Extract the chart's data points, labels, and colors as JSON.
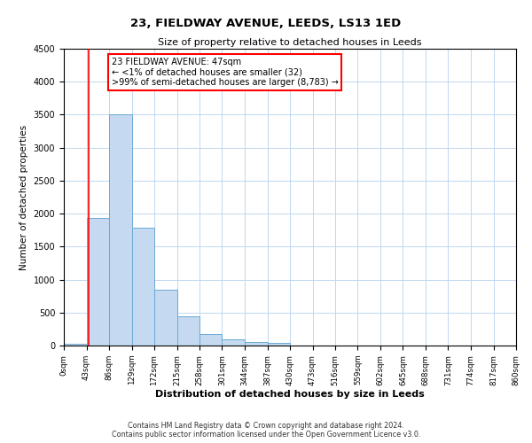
{
  "title": "23, FIELDWAY AVENUE, LEEDS, LS13 1ED",
  "subtitle": "Size of property relative to detached houses in Leeds",
  "xlabel": "Distribution of detached houses by size in Leeds",
  "ylabel": "Number of detached properties",
  "bin_edges": [
    0,
    43,
    86,
    129,
    172,
    215,
    258,
    301,
    344,
    387,
    430,
    473,
    516,
    559,
    602,
    645,
    688,
    731,
    774,
    817,
    860
  ],
  "bar_heights": [
    32,
    1930,
    3500,
    1780,
    850,
    450,
    175,
    90,
    55,
    40,
    0,
    0,
    0,
    0,
    0,
    0,
    0,
    0,
    0,
    0
  ],
  "bar_color": "#c5d9f0",
  "bar_edge_color": "#6aaad4",
  "ylim": [
    0,
    4500
  ],
  "yticks": [
    0,
    500,
    1000,
    1500,
    2000,
    2500,
    3000,
    3500,
    4000,
    4500
  ],
  "red_line_x": 47,
  "annotation_title": "23 FIELDWAY AVENUE: 47sqm",
  "annotation_line1": "← <1% of detached houses are smaller (32)",
  "annotation_line2": ">99% of semi-detached houses are larger (8,783) →",
  "footer_line1": "Contains HM Land Registry data © Crown copyright and database right 2024.",
  "footer_line2": "Contains public sector information licensed under the Open Government Licence v3.0.",
  "background_color": "#ffffff",
  "grid_color": "#c0d8f0"
}
